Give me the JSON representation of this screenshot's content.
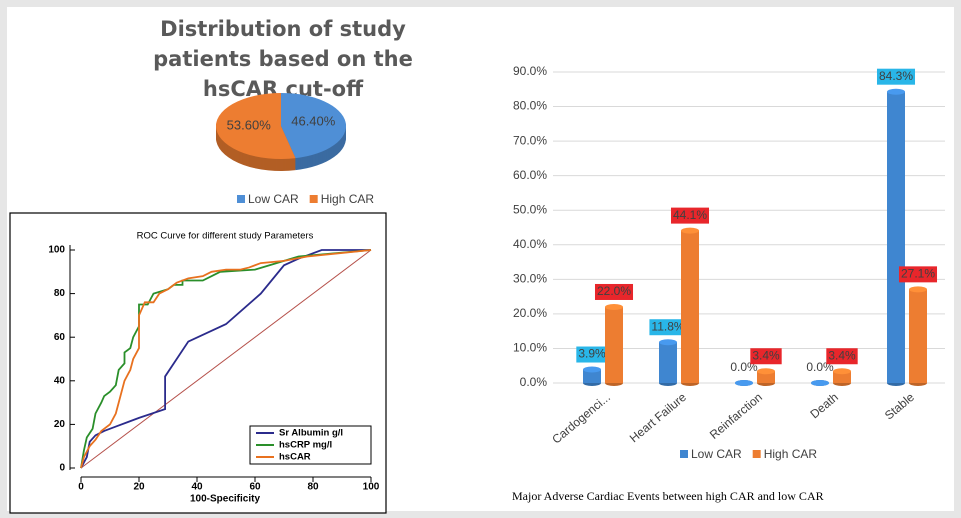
{
  "chart_data": [
    {
      "type": "pie",
      "title": "Distribution of study patients based on the hsCAR cut-off",
      "categories": [
        "Low CAR",
        "High CAR"
      ],
      "values": [
        46.4,
        53.6
      ],
      "value_labels": [
        "46.40%",
        "53.60%"
      ],
      "colors": [
        "#4f8fd6",
        "#ed7d31"
      ],
      "legend": "bottom"
    },
    {
      "type": "line",
      "title": "ROC Curve for different study Parameters",
      "xlabel": "100-Specificity",
      "xlim": [
        0,
        100
      ],
      "ylim": [
        0,
        100
      ],
      "xticks": [
        0,
        20,
        40,
        60,
        80,
        100
      ],
      "yticks": [
        0,
        20,
        40,
        60,
        80,
        100
      ],
      "legend": "lower right",
      "series": [
        {
          "name": "Sr Albumin g/l",
          "color": "#2b2b8c",
          "x": [
            0,
            2,
            3,
            5,
            8,
            12,
            20,
            29,
            29,
            33,
            37,
            50,
            62,
            70,
            75,
            83,
            86,
            100
          ],
          "values": [
            0,
            5,
            12,
            15,
            17,
            19,
            23,
            27,
            42,
            50,
            58,
            66,
            80,
            93,
            96,
            100,
            100,
            100
          ]
        },
        {
          "name": "hsCRP mg/l",
          "color": "#2a8f2a",
          "x": [
            0,
            1,
            2,
            4,
            5,
            7,
            8,
            10,
            12,
            13,
            15,
            15,
            17,
            18,
            20,
            20,
            23,
            25,
            30,
            32,
            35,
            35,
            42,
            45,
            48,
            60,
            65,
            70,
            75,
            100
          ],
          "values": [
            0,
            8,
            14,
            18,
            25,
            30,
            33,
            35,
            38,
            45,
            48,
            53,
            55,
            60,
            65,
            75,
            75,
            80,
            82,
            84,
            84,
            86,
            86,
            88,
            90,
            91,
            93,
            95,
            97,
            100
          ]
        },
        {
          "name": "hsCAR",
          "color": "#e8711f",
          "x": [
            0,
            1,
            3,
            5,
            7,
            10,
            12,
            13,
            15,
            17,
            18,
            20,
            20,
            22,
            25,
            27,
            30,
            33,
            37,
            42,
            45,
            50,
            55,
            58,
            62,
            70,
            78,
            100
          ],
          "values": [
            0,
            5,
            10,
            13,
            17,
            20,
            25,
            30,
            40,
            45,
            50,
            55,
            70,
            76,
            76,
            80,
            82,
            85,
            87,
            88,
            90,
            91,
            91,
            92,
            94,
            95,
            97,
            100
          ]
        },
        {
          "color": "#b5504a",
          "x": [
            0,
            100
          ],
          "values": [
            0,
            100
          ]
        }
      ]
    },
    {
      "type": "bar",
      "caption": "Major Adverse Cardiac Events between high CAR and low CAR",
      "categories": [
        "Cardogenci...",
        "Heart Failure",
        "Reinfarction",
        "Death",
        "Stable"
      ],
      "series": [
        {
          "name": "Low CAR",
          "color": "#3f86d0",
          "label_color": "#29b6e8",
          "values": [
            3.9,
            11.8,
            0.0,
            0.0,
            84.3
          ],
          "value_labels": [
            "3.9%",
            "11.8%",
            "0.0%",
            "0.0%",
            "84.3%"
          ]
        },
        {
          "name": "High CAR",
          "color": "#ed7d31",
          "label_color": "#e8262b",
          "values": [
            22.0,
            44.1,
            3.4,
            3.4,
            27.1
          ],
          "value_labels": [
            "22.0%",
            "44.1%",
            "3.4%",
            "3.4%",
            "27.1%"
          ]
        }
      ],
      "ylim": [
        0,
        90
      ],
      "yticks": [
        {
          "value": 0,
          "label": "0.0%"
        },
        {
          "value": 10,
          "label": "10.0%"
        },
        {
          "value": 20,
          "label": "20.0%"
        },
        {
          "value": 30,
          "label": "30.0%"
        },
        {
          "value": 40,
          "label": "40.0%"
        },
        {
          "value": 50,
          "label": "50.0%"
        },
        {
          "value": 60,
          "label": "60.0%"
        },
        {
          "value": 70,
          "label": "70.0%"
        },
        {
          "value": 80,
          "label": "80.0%"
        },
        {
          "value": 90,
          "label": "90.0%"
        }
      ],
      "grid": true,
      "legend": "bottom"
    }
  ]
}
